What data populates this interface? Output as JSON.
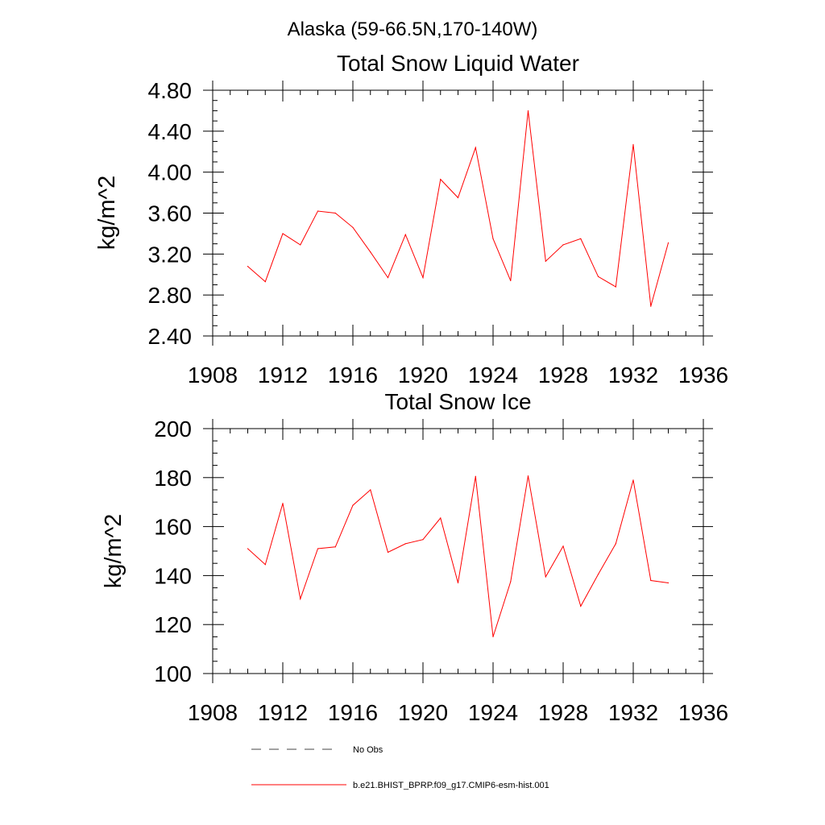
{
  "header": {
    "title": "Alaska (59-66.5N,170-140W)"
  },
  "chart_data": [
    {
      "type": "line",
      "title": "Total Snow Liquid Water",
      "ylabel": "kg/m^2",
      "xlabel": "",
      "xlim": [
        1908,
        1936
      ],
      "ylim": [
        2.4,
        4.8
      ],
      "xticks": [
        1908,
        1912,
        1916,
        1920,
        1924,
        1928,
        1932,
        1936
      ],
      "xtick_labels": [
        "1908",
        "1912",
        "1916",
        "1920",
        "1924",
        "1928",
        "1932",
        "1936"
      ],
      "yticks": [
        2.4,
        2.8,
        3.2,
        3.6,
        4.0,
        4.4,
        4.8
      ],
      "ytick_labels": [
        "2.40",
        "2.80",
        "3.20",
        "3.60",
        "4.00",
        "4.40",
        "4.80"
      ],
      "grid": false,
      "series": [
        {
          "name": "b.e21.BHIST_BPRP.f09_g17.CMIP6-esm-hist.001",
          "color": "#ff0000",
          "x": [
            1910,
            1911,
            1912,
            1913,
            1914,
            1915,
            1916,
            1917,
            1918,
            1919,
            1920,
            1921,
            1922,
            1923,
            1924,
            1925,
            1926,
            1927,
            1928,
            1929,
            1930,
            1931,
            1932,
            1933,
            1934
          ],
          "y": [
            3.08,
            2.93,
            3.4,
            3.29,
            3.62,
            3.6,
            3.46,
            3.22,
            2.97,
            3.39,
            2.97,
            3.93,
            3.75,
            4.24,
            3.35,
            2.94,
            4.6,
            3.13,
            3.29,
            3.35,
            2.98,
            2.88,
            4.27,
            2.69,
            3.31
          ]
        }
      ]
    },
    {
      "type": "line",
      "title": "Total Snow Ice",
      "ylabel": "kg/m^2",
      "xlabel": "",
      "xlim": [
        1908,
        1936
      ],
      "ylim": [
        100,
        200
      ],
      "xticks": [
        1908,
        1912,
        1916,
        1920,
        1924,
        1928,
        1932,
        1936
      ],
      "xtick_labels": [
        "1908",
        "1912",
        "1916",
        "1920",
        "1924",
        "1928",
        "1932",
        "1936"
      ],
      "yticks": [
        100,
        120,
        140,
        160,
        180,
        200
      ],
      "ytick_labels": [
        "100",
        "120",
        "140",
        "160",
        "180",
        "200"
      ],
      "grid": false,
      "series": [
        {
          "name": "b.e21.BHIST_BPRP.f09_g17.CMIP6-esm-hist.001",
          "color": "#ff0000",
          "x": [
            1910,
            1911,
            1912,
            1913,
            1914,
            1915,
            1916,
            1917,
            1918,
            1919,
            1920,
            1921,
            1922,
            1923,
            1924,
            1925,
            1926,
            1927,
            1928,
            1929,
            1930,
            1931,
            1932,
            1933,
            1934
          ],
          "y": [
            151,
            144.5,
            169.5,
            130.5,
            151,
            151.7,
            168.7,
            175,
            149.5,
            153,
            154.7,
            163.5,
            137,
            180.5,
            115,
            137.5,
            180.7,
            139.5,
            152,
            127.5,
            140.5,
            153,
            179,
            138,
            137
          ]
        }
      ]
    }
  ],
  "legend": {
    "placement": "bottom-center",
    "items": [
      {
        "label": "No Obs",
        "style": "dashed",
        "color": "#000000"
      },
      {
        "label": "b.e21.BHIST_BPRP.f09_g17.CMIP6-esm-hist.001",
        "style": "solid",
        "color": "#ff0000"
      }
    ]
  }
}
